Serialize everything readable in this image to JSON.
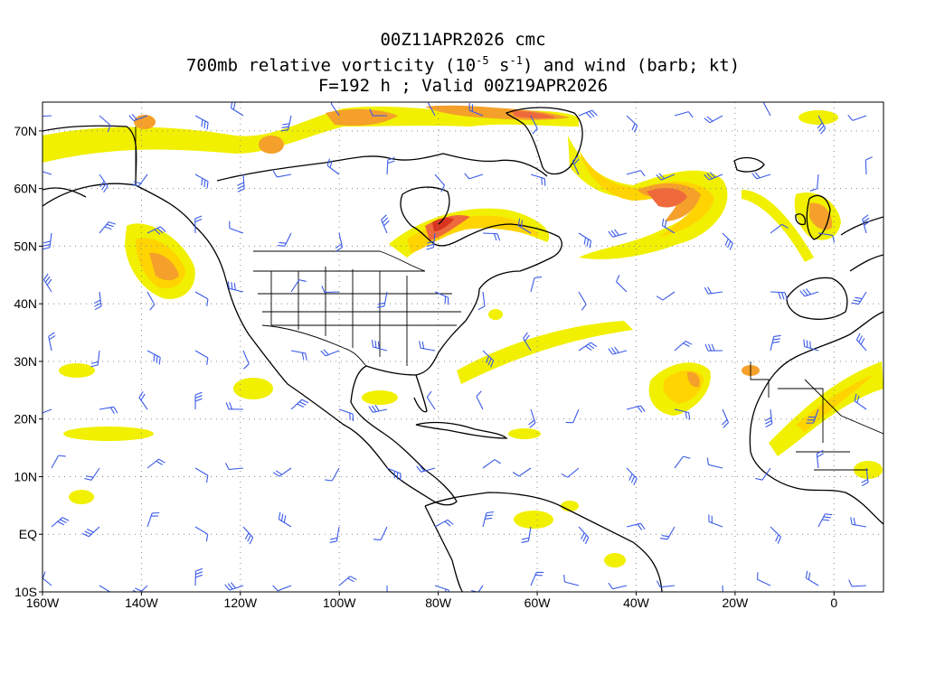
{
  "title": {
    "line1": "00Z11APR2026 cmc",
    "line2_prefix": "700mb relative vorticity (10",
    "line2_exp": "-5",
    "line2_mid": " s",
    "line2_exp2": "-1",
    "line2_suffix": ") and wind (barb; kt)",
    "line3": "F=192 h ; Valid 00Z19APR2026"
  },
  "axes": {
    "lat_labels": [
      "70N",
      "60N",
      "50N",
      "40N",
      "30N",
      "20N",
      "10N",
      "EQ",
      "10S"
    ],
    "lat_values": [
      70,
      60,
      50,
      40,
      30,
      20,
      10,
      0,
      -10
    ],
    "lon_labels": [
      "160W",
      "140W",
      "120W",
      "100W",
      "80W",
      "60W",
      "40W",
      "20W",
      "0"
    ],
    "lon_values": [
      -160,
      -140,
      -120,
      -100,
      -80,
      -60,
      -40,
      -20,
      0
    ],
    "lon_range": [
      -160,
      10
    ],
    "lat_range": [
      -10,
      75
    ],
    "grid": "dotted"
  },
  "colors": {
    "vort_low": "#f0f000",
    "vort_mid": "#ffd400",
    "vort_orange": "#f5a02a",
    "vort_high": "#ee6a3c",
    "vort_max": "#d9341f",
    "barb": "#3a5ae8",
    "coast": "#000000"
  },
  "fields": {
    "variable": "700mb relative vorticity",
    "overlay": "wind barbs (kt)",
    "model": "cmc"
  }
}
